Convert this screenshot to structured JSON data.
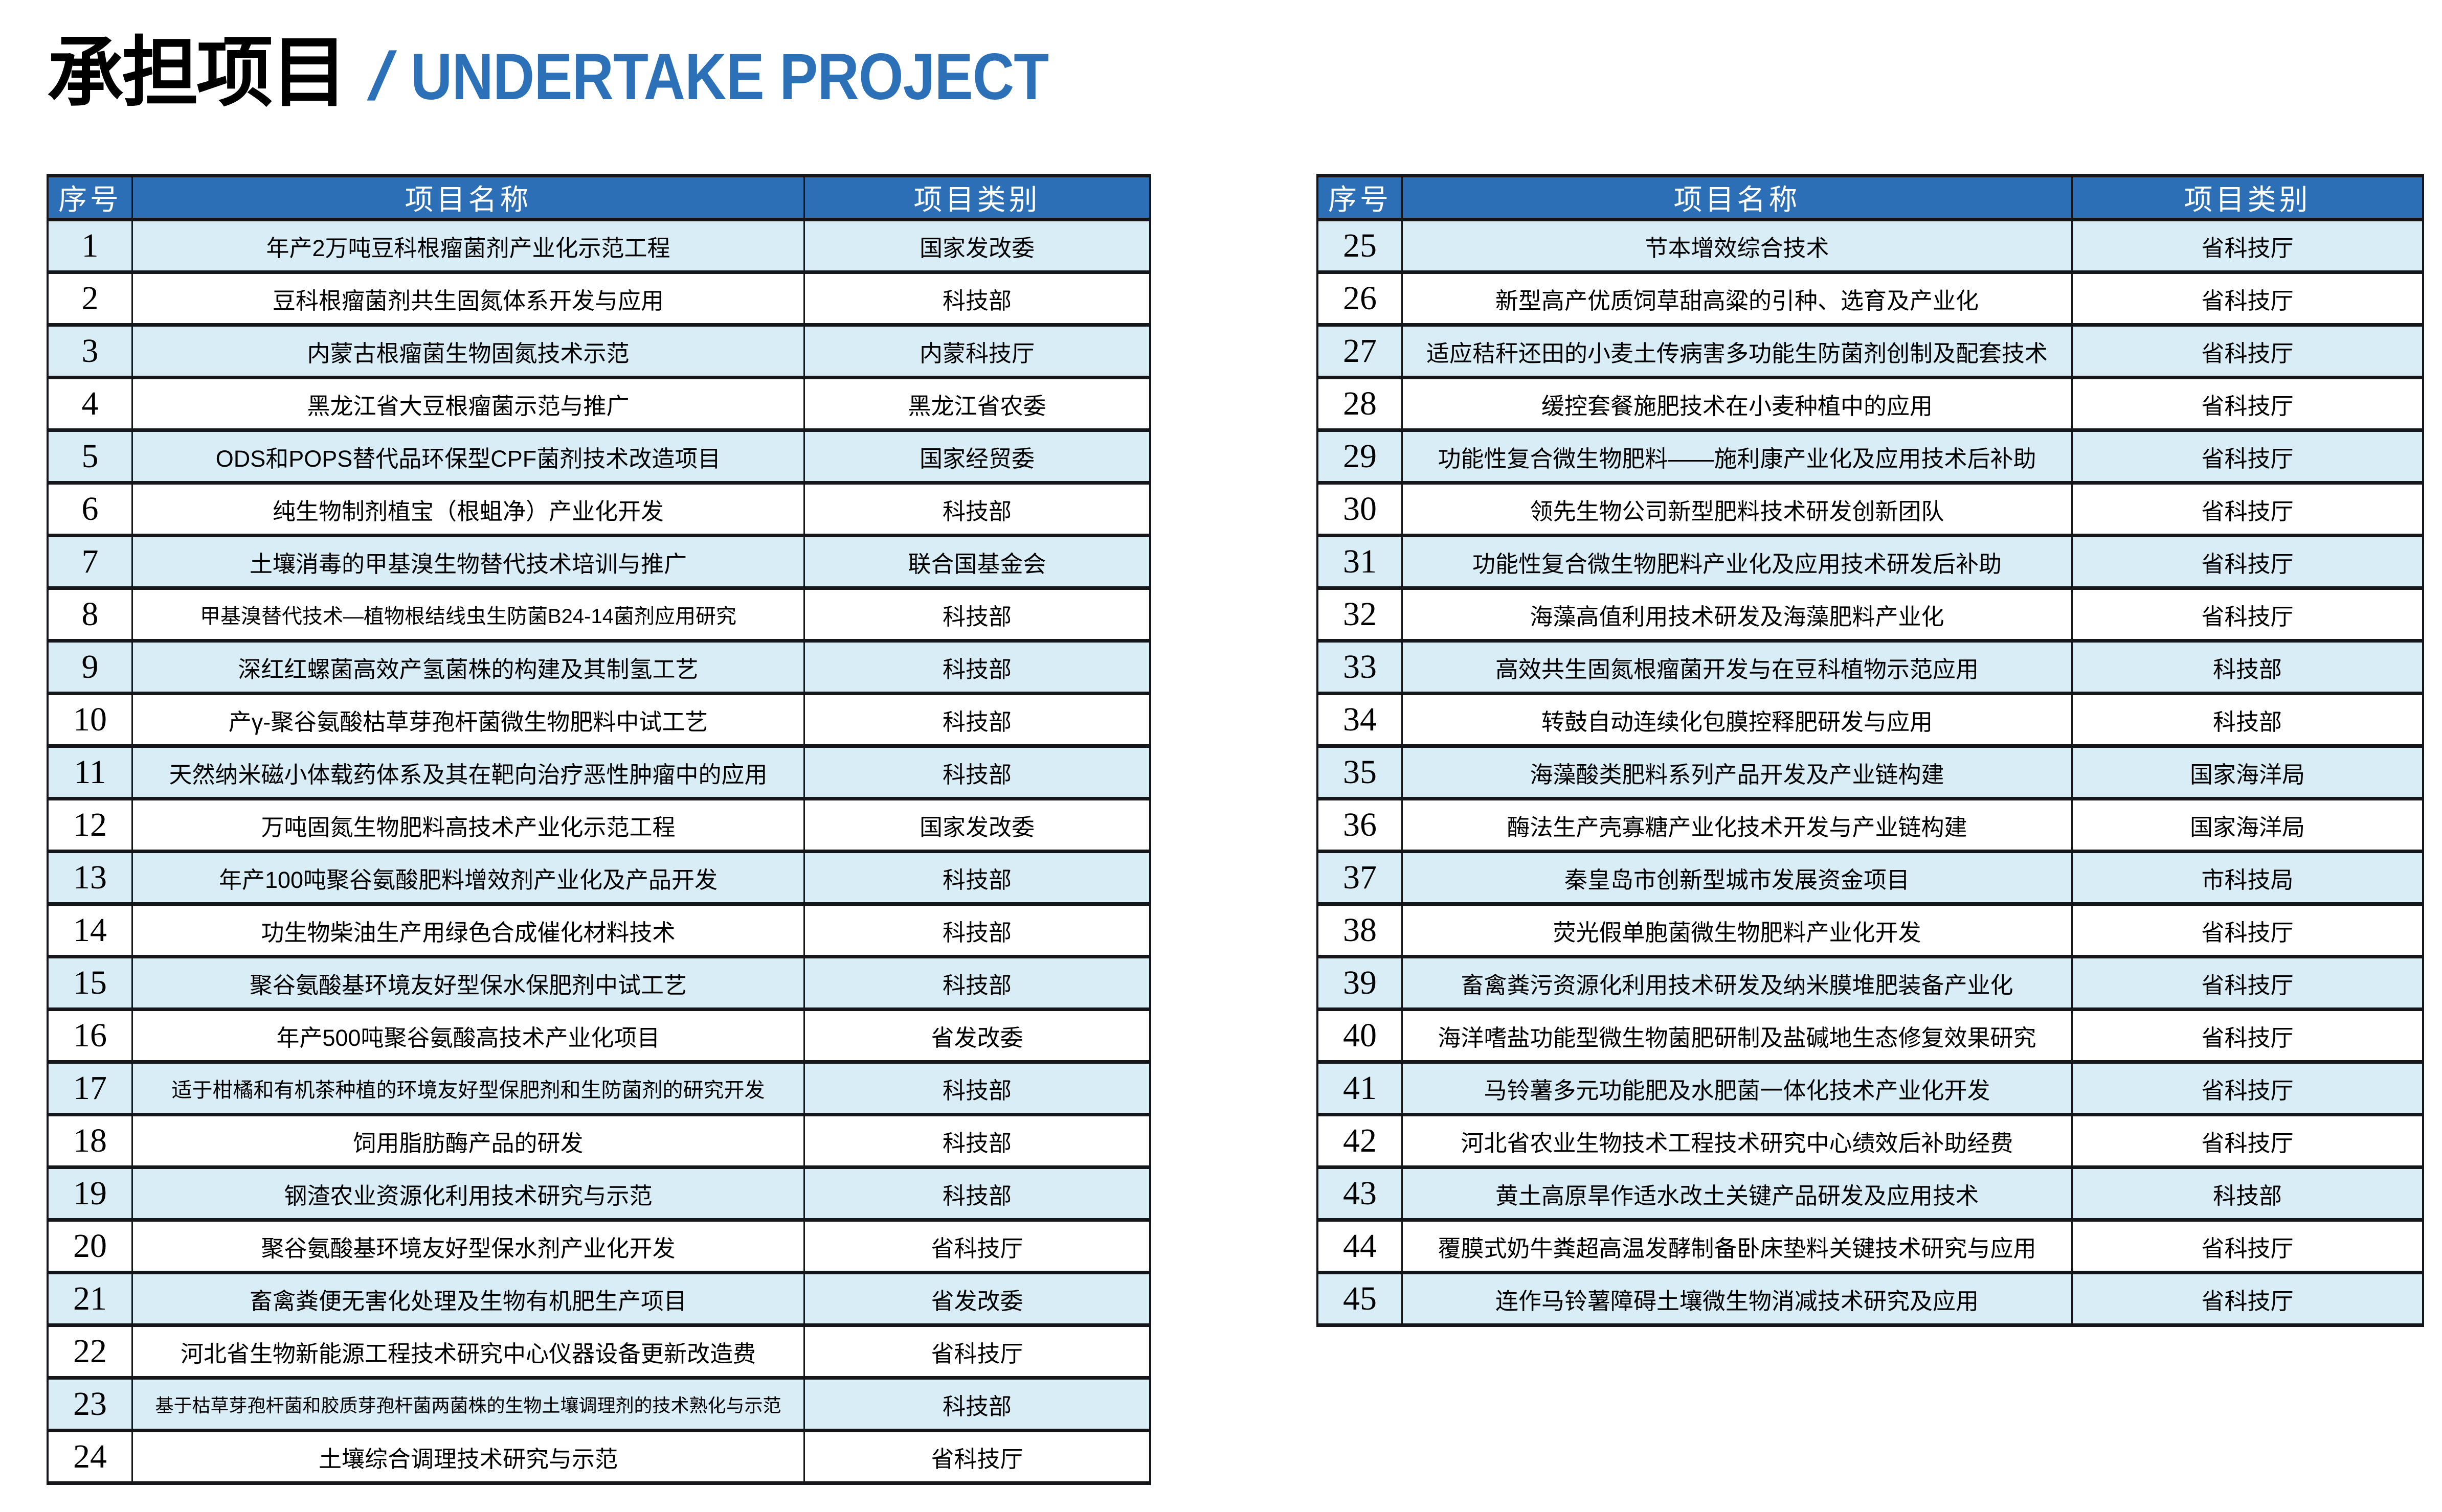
{
  "title": {
    "cn": "承担项目",
    "divider": "/",
    "en": "UNDERTAKE PROJECT"
  },
  "colors": {
    "accent_blue": "#2c71b8",
    "header_bg": "#2c6fb6",
    "alt_row_bg": "#d8edf5",
    "border": "#14161a",
    "title_black": "#000000"
  },
  "tables": {
    "left": {
      "headers": [
        "序号",
        "项目名称",
        "项目类别"
      ],
      "rows": [
        [
          "1",
          "年产2万吨豆科根瘤菌剂产业化示范工程",
          "国家发改委"
        ],
        [
          "2",
          "豆科根瘤菌剂共生固氮体系开发与应用",
          "科技部"
        ],
        [
          "3",
          "内蒙古根瘤菌生物固氮技术示范",
          "内蒙科技厅"
        ],
        [
          "4",
          "黑龙江省大豆根瘤菌示范与推广",
          "黑龙江省农委"
        ],
        [
          "5",
          "ODS和POPS替代品环保型CPF菌剂技术改造项目",
          "国家经贸委"
        ],
        [
          "6",
          "纯生物制剂植宝（根蛆净）产业化开发",
          "科技部"
        ],
        [
          "7",
          "土壤消毒的甲基溴生物替代技术培训与推广",
          "联合国基金会"
        ],
        [
          "8",
          "甲基溴替代技术—植物根结线虫生防菌B24-14菌剂应用研究",
          "科技部"
        ],
        [
          "9",
          "深红红螺菌高效产氢菌株的构建及其制氢工艺",
          "科技部"
        ],
        [
          "10",
          "产γ-聚谷氨酸枯草芽孢杆菌微生物肥料中试工艺",
          "科技部"
        ],
        [
          "11",
          "天然纳米磁小体载药体系及其在靶向治疗恶性肿瘤中的应用",
          "科技部"
        ],
        [
          "12",
          "万吨固氮生物肥料高技术产业化示范工程",
          "国家发改委"
        ],
        [
          "13",
          "年产100吨聚谷氨酸肥料增效剂产业化及产品开发",
          "科技部"
        ],
        [
          "14",
          "功生物柴油生产用绿色合成催化材料技术",
          "科技部"
        ],
        [
          "15",
          "聚谷氨酸基环境友好型保水保肥剂中试工艺",
          "科技部"
        ],
        [
          "16",
          "年产500吨聚谷氨酸高技术产业化项目",
          "省发改委"
        ],
        [
          "17",
          "适于柑橘和有机茶种植的环境友好型保肥剂和生防菌剂的研究开发",
          "科技部"
        ],
        [
          "18",
          "饲用脂肪酶产品的研发",
          "科技部"
        ],
        [
          "19",
          "钢渣农业资源化利用技术研究与示范",
          "科技部"
        ],
        [
          "20",
          "聚谷氨酸基环境友好型保水剂产业化开发",
          "省科技厅"
        ],
        [
          "21",
          "畜禽粪便无害化处理及生物有机肥生产项目",
          "省发改委"
        ],
        [
          "22",
          "河北省生物新能源工程技术研究中心仪器设备更新改造费",
          "省科技厅"
        ],
        [
          "23",
          "基于枯草芽孢杆菌和胶质芽孢杆菌两菌株的生物土壤调理剂的技术熟化与示范",
          "科技部"
        ],
        [
          "24",
          "土壤综合调理技术研究与示范",
          "省科技厅"
        ]
      ]
    },
    "right": {
      "headers": [
        "序号",
        "项目名称",
        "项目类别"
      ],
      "rows": [
        [
          "25",
          "节本增效综合技术",
          "省科技厅"
        ],
        [
          "26",
          "新型高产优质饲草甜高粱的引种、选育及产业化",
          "省科技厅"
        ],
        [
          "27",
          "适应秸秆还田的小麦土传病害多功能生防菌剂创制及配套技术",
          "省科技厅"
        ],
        [
          "28",
          "缓控套餐施肥技术在小麦种植中的应用",
          "省科技厅"
        ],
        [
          "29",
          "功能性复合微生物肥料——施利康产业化及应用技术后补助",
          "省科技厅"
        ],
        [
          "30",
          "领先生物公司新型肥料技术研发创新团队",
          "省科技厅"
        ],
        [
          "31",
          "功能性复合微生物肥料产业化及应用技术研发后补助",
          "省科技厅"
        ],
        [
          "32",
          "海藻高值利用技术研发及海藻肥料产业化",
          "省科技厅"
        ],
        [
          "33",
          "高效共生固氮根瘤菌开发与在豆科植物示范应用",
          "科技部"
        ],
        [
          "34",
          "转鼓自动连续化包膜控释肥研发与应用",
          "科技部"
        ],
        [
          "35",
          "海藻酸类肥料系列产品开发及产业链构建",
          "国家海洋局"
        ],
        [
          "36",
          "酶法生产壳寡糖产业化技术开发与产业链构建",
          "国家海洋局"
        ],
        [
          "37",
          "秦皇岛市创新型城市发展资金项目",
          "市科技局"
        ],
        [
          "38",
          "荧光假单胞菌微生物肥料产业化开发",
          "省科技厅"
        ],
        [
          "39",
          "畜禽粪污资源化利用技术研发及纳米膜堆肥装备产业化",
          "省科技厅"
        ],
        [
          "40",
          "海洋嗜盐功能型微生物菌肥研制及盐碱地生态修复效果研究",
          "省科技厅"
        ],
        [
          "41",
          "马铃薯多元功能肥及水肥菌一体化技术产业化开发",
          "省科技厅"
        ],
        [
          "42",
          "河北省农业生物技术工程技术研究中心绩效后补助经费",
          "省科技厅"
        ],
        [
          "43",
          "黄土高原旱作适水改土关键产品研发及应用技术",
          "科技部"
        ],
        [
          "44",
          "覆膜式奶牛粪超高温发酵制备卧床垫料关键技术研究与应用",
          "省科技厅"
        ],
        [
          "45",
          "连作马铃薯障碍土壤微生物消减技术研究及应用",
          "省科技厅"
        ]
      ]
    }
  }
}
